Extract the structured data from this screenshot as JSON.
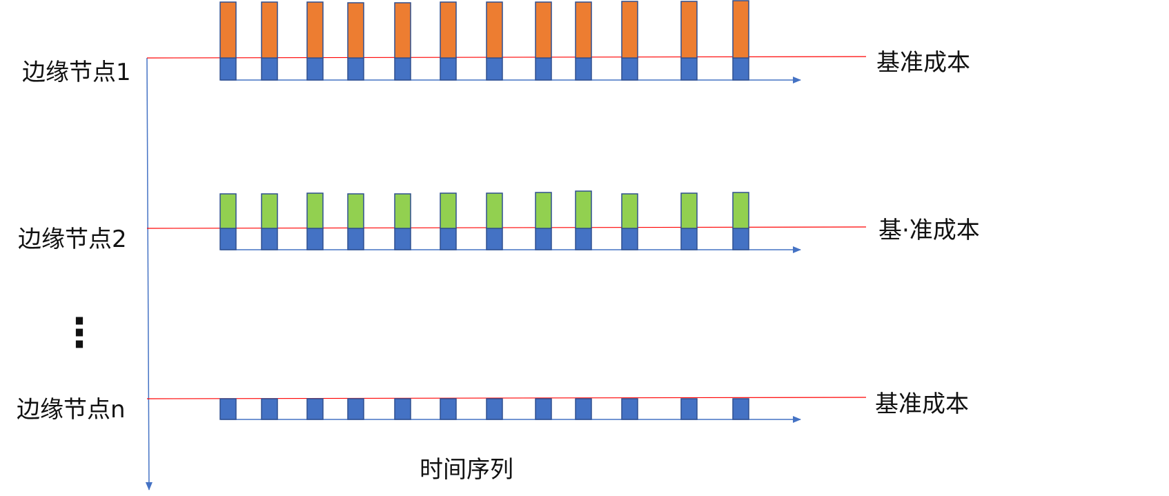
{
  "diagram": {
    "vertical_axis": {
      "arrow": "down"
    },
    "time_axis_label": "时间序列",
    "ellipsis": "⋮",
    "colors": {
      "axis": "#4472c4",
      "baseline": "#ff0000",
      "base_bar": "#4472c4",
      "bar_border": "#2f4f8f"
    },
    "rows": [
      {
        "label": "边缘节点1",
        "cost_label": "基准成本",
        "excess_color": "#ed7d31",
        "has_excess": true
      },
      {
        "label": "边缘节点2",
        "cost_label": "基·准成本",
        "excess_color": "#92d050",
        "has_excess": true
      },
      {
        "label": "边缘节点n",
        "cost_label": "基准成本",
        "excess_color": null,
        "has_excess": false
      }
    ]
  }
}
